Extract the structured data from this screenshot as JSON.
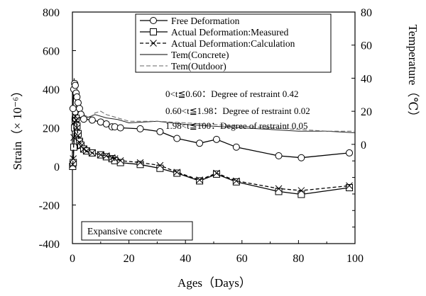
{
  "chart_data": {
    "type": "line",
    "xlabel": "Ages（Days）",
    "ylabel_left": "Strain（× 10⁻⁶）",
    "ylabel_right": "Temperature（℃）",
    "xlim": [
      0,
      100
    ],
    "ylim_left": [
      -400,
      800
    ],
    "ylim_right": [
      -60,
      80
    ],
    "x_ticks": [
      "0",
      "20",
      "40",
      "60",
      "80",
      "100"
    ],
    "y_left_ticks": [
      "-400",
      "-200",
      "0",
      "200",
      "400",
      "600",
      "800"
    ],
    "y_right_ticks": [
      "0",
      "20",
      "40",
      "60",
      "80"
    ],
    "legend_placement": "top-right",
    "grid": false,
    "annotations": [
      "0<t≦0.60：Degree of restraint 0.42",
      "0.60<t≦1.98：Degree of restraint 0.02",
      "1.98<t≦100：Degree of restraint 0.05"
    ],
    "inset_label": "Expansive  concrete",
    "series": [
      {
        "name": "Free Deformation",
        "axis": "left",
        "marker": "circle",
        "style": "solid",
        "x": [
          0.2,
          0.5,
          0.8,
          1.0,
          1.3,
          1.6,
          2.0,
          2.5,
          3.0,
          4.0,
          7.0,
          10.0,
          12.0,
          14.0,
          15.0,
          17.0,
          24.0,
          31.0,
          37.0,
          45.0,
          51.0,
          58.0,
          73.0,
          81.0,
          98.0
        ],
        "y": [
          300,
          400,
          430,
          420,
          380,
          360,
          330,
          300,
          270,
          245,
          240,
          230,
          220,
          205,
          205,
          200,
          195,
          180,
          145,
          120,
          140,
          100,
          55,
          45,
          70
        ]
      },
      {
        "name": "Actual Deformation:Measured",
        "axis": "left",
        "marker": "square",
        "style": "solid",
        "x": [
          0.1,
          0.3,
          0.5,
          0.8,
          1.0,
          1.3,
          1.6,
          2.0,
          2.5,
          3.0,
          4.0,
          5.0,
          7.0,
          10.0,
          12.0,
          14.0,
          15.0,
          17.0,
          24.0,
          31.0,
          37.0,
          45.0,
          51.0,
          58.0,
          73.0,
          81.0,
          98.0
        ],
        "y": [
          0,
          20,
          100,
          200,
          240,
          250,
          210,
          170,
          130,
          110,
          90,
          80,
          70,
          60,
          50,
          40,
          30,
          20,
          10,
          -10,
          -35,
          -75,
          -40,
          -80,
          -130,
          -145,
          -110
        ]
      },
      {
        "name": "Actual Deformation:Calculation",
        "axis": "left",
        "marker": "x",
        "style": "dashed",
        "x": [
          0.1,
          0.3,
          0.5,
          0.8,
          1.0,
          1.3,
          1.6,
          2.0,
          2.5,
          3.0,
          4.0,
          5.0,
          7.0,
          10.0,
          12.0,
          14.0,
          15.0,
          17.0,
          24.0,
          31.0,
          37.0,
          45.0,
          51.0,
          58.0,
          73.0,
          81.0,
          98.0
        ],
        "y": [
          10,
          40,
          150,
          230,
          260,
          240,
          200,
          160,
          125,
          105,
          90,
          80,
          70,
          60,
          55,
          45,
          40,
          30,
          20,
          5,
          -30,
          -70,
          -35,
          -75,
          -115,
          -125,
          -100
        ]
      },
      {
        "name": "Tem(Concrete)",
        "axis": "right",
        "marker": "none",
        "style": "solid",
        "x": [
          0.0,
          0.3,
          0.6,
          1.0,
          1.5,
          2.0,
          3.0,
          5.0,
          8.0,
          12.0,
          16.0,
          20.0,
          30.0,
          40.0,
          50.0,
          60.0,
          70.0,
          80.0,
          90.0,
          100.0
        ],
        "y": [
          18,
          30,
          40,
          32,
          22,
          19,
          15,
          16,
          18,
          16,
          15,
          13,
          14,
          12,
          11,
          10,
          9,
          8,
          8,
          7
        ]
      },
      {
        "name": "Tem(Outdoor)",
        "axis": "right",
        "marker": "none",
        "style": "dashed",
        "x": [
          0.0,
          1.0,
          2.0,
          4.0,
          6.0,
          8.0,
          10.0,
          12.0,
          16.0,
          20.0,
          30.0,
          40.0,
          50.0,
          60.0,
          70.0,
          80.0,
          90.0,
          100.0
        ],
        "y": [
          17,
          18,
          17,
          18,
          16,
          19,
          20,
          18,
          16,
          14,
          14,
          13,
          12,
          11,
          10,
          9,
          8,
          8
        ]
      }
    ]
  }
}
